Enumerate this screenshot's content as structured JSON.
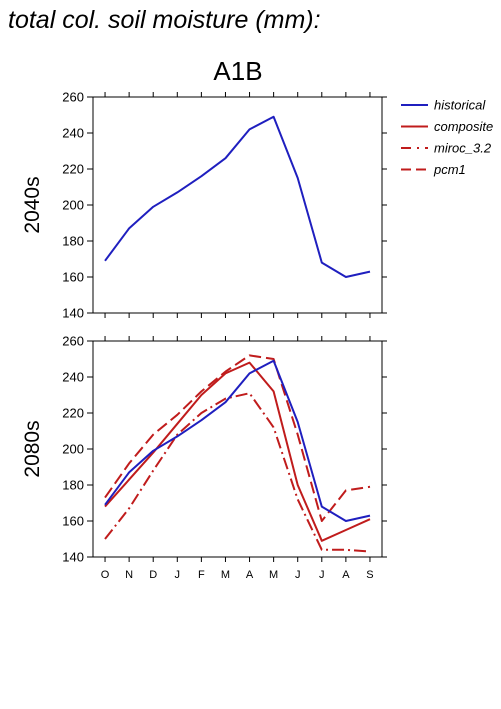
{
  "title": "total col. soil moisture (mm):",
  "scenario": "A1B",
  "colors": {
    "historical": "#1f1fbf",
    "model": "#c01c1c"
  },
  "legend": [
    {
      "key": "historical",
      "label": "historical",
      "style": "solid",
      "color": "#1f1fbf"
    },
    {
      "key": "composite",
      "label": "composite",
      "style": "solid",
      "color": "#c01c1c"
    },
    {
      "key": "miroc",
      "label": "miroc_3.2",
      "style": "dashdot",
      "color": "#c01c1c"
    },
    {
      "key": "pcm1",
      "label": "pcm1",
      "style": "dashed",
      "color": "#c01c1c"
    }
  ],
  "chart_data": [
    {
      "type": "line",
      "row_label": "2040s",
      "categories": [
        "O",
        "N",
        "D",
        "J",
        "F",
        "M",
        "A",
        "M",
        "J",
        "J",
        "A",
        "S"
      ],
      "ylim": [
        140,
        260
      ],
      "yticks": [
        140,
        160,
        180,
        200,
        220,
        240,
        260
      ],
      "show_x_labels": false,
      "series": [
        {
          "key": "historical",
          "name": "historical",
          "values": [
            169,
            187,
            199,
            207,
            216,
            226,
            242,
            249,
            215,
            168,
            160,
            163
          ]
        }
      ]
    },
    {
      "type": "line",
      "row_label": "2080s",
      "categories": [
        "O",
        "N",
        "D",
        "J",
        "F",
        "M",
        "A",
        "M",
        "J",
        "J",
        "A",
        "S"
      ],
      "ylim": [
        140,
        260
      ],
      "yticks": [
        140,
        160,
        180,
        200,
        220,
        240,
        260
      ],
      "show_x_labels": true,
      "series": [
        {
          "key": "historical",
          "name": "historical",
          "values": [
            169,
            187,
            199,
            207,
            216,
            226,
            242,
            249,
            215,
            168,
            160,
            163
          ]
        },
        {
          "key": "composite",
          "name": "composite",
          "values": [
            168,
            183,
            198,
            214,
            230,
            242,
            248,
            232,
            180,
            149,
            155,
            161
          ]
        },
        {
          "key": "miroc",
          "name": "miroc_3.2",
          "values": [
            150,
            167,
            188,
            208,
            220,
            228,
            231,
            212,
            172,
            144,
            144,
            143
          ]
        },
        {
          "key": "pcm1",
          "name": "pcm1",
          "values": [
            173,
            192,
            208,
            219,
            232,
            243,
            252,
            250,
            208,
            160,
            177,
            179
          ]
        }
      ]
    }
  ]
}
